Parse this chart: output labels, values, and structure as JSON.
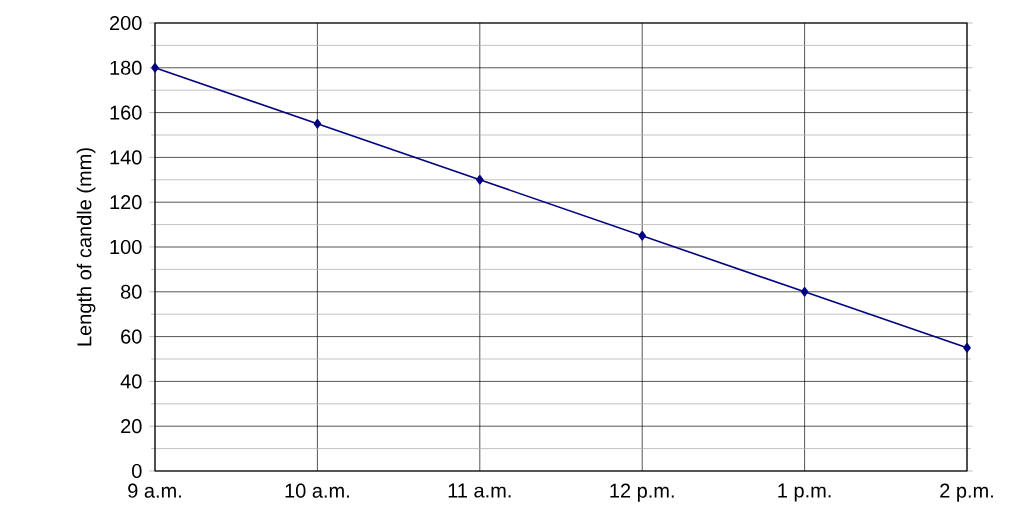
{
  "chart_data": {
    "type": "line",
    "ylabel": "Length of candle (mm)",
    "categories": [
      "9 a.m.",
      "10 a.m.",
      "11 a.m.",
      "12 p.m.",
      "1 p.m.",
      "2 p.m."
    ],
    "values": [
      180,
      155,
      130,
      105,
      80,
      55
    ],
    "color": "#000080",
    "ylim": [
      0,
      200
    ],
    "yticks": [
      0,
      20,
      40,
      60,
      80,
      100,
      120,
      140,
      160,
      180,
      200
    ],
    "grid": true,
    "marker": "diamond",
    "line_style": "solid"
  }
}
